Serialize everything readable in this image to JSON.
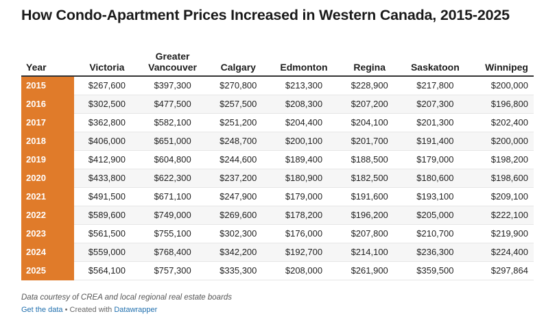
{
  "title": "How Condo-Apartment Prices Increased in Western Canada, 2015-2025",
  "chart_data": {
    "type": "table",
    "title": "How Condo-Apartment Prices Increased in Western Canada, 2015-2025",
    "columns": [
      "Year",
      "Victoria",
      "Greater Vancouver",
      "Calgary",
      "Edmonton",
      "Regina",
      "Saskatoon",
      "Winnipeg"
    ],
    "rows": [
      [
        "2015",
        "$267,600",
        "$397,300",
        "$270,800",
        "$213,300",
        "$228,900",
        "$217,800",
        "$200,000"
      ],
      [
        "2016",
        "$302,500",
        "$477,500",
        "$257,500",
        "$208,300",
        "$207,200",
        "$207,300",
        "$196,800"
      ],
      [
        "2017",
        "$362,800",
        "$582,100",
        "$251,200",
        "$204,400",
        "$204,100",
        "$201,300",
        "$202,400"
      ],
      [
        "2018",
        "$406,000",
        "$651,000",
        "$248,700",
        "$200,100",
        "$201,700",
        "$191,400",
        "$200,000"
      ],
      [
        "2019",
        "$412,900",
        "$604,800",
        "$244,600",
        "$189,400",
        "$188,500",
        "$179,000",
        "$198,200"
      ],
      [
        "2020",
        "$433,800",
        "$622,300",
        "$237,200",
        "$180,900",
        "$182,500",
        "$180,600",
        "$198,600"
      ],
      [
        "2021",
        "$491,500",
        "$671,100",
        "$247,900",
        "$179,000",
        "$191,600",
        "$193,100",
        "$209,100"
      ],
      [
        "2022",
        "$589,600",
        "$749,000",
        "$269,600",
        "$178,200",
        "$196,200",
        "$205,000",
        "$222,100"
      ],
      [
        "2023",
        "$561,500",
        "$755,100",
        "$302,300",
        "$176,000",
        "$207,800",
        "$210,700",
        "$219,900"
      ],
      [
        "2024",
        "$559,000",
        "$768,400",
        "$342,200",
        "$192,700",
        "$214,100",
        "$236,300",
        "$224,400"
      ],
      [
        "2025",
        "$564,100",
        "$757,300",
        "$335,300",
        "$208,000",
        "$261,900",
        "$359,500",
        "$297,864"
      ]
    ]
  },
  "notes": "Data courtesy of CREA and local regional real estate boards",
  "footer": {
    "get_data_label": "Get the data",
    "separator": " • Created with ",
    "tool_label": "Datawrapper"
  },
  "colors": {
    "year_highlight": "#e07b2a",
    "link": "#1f6fae"
  }
}
